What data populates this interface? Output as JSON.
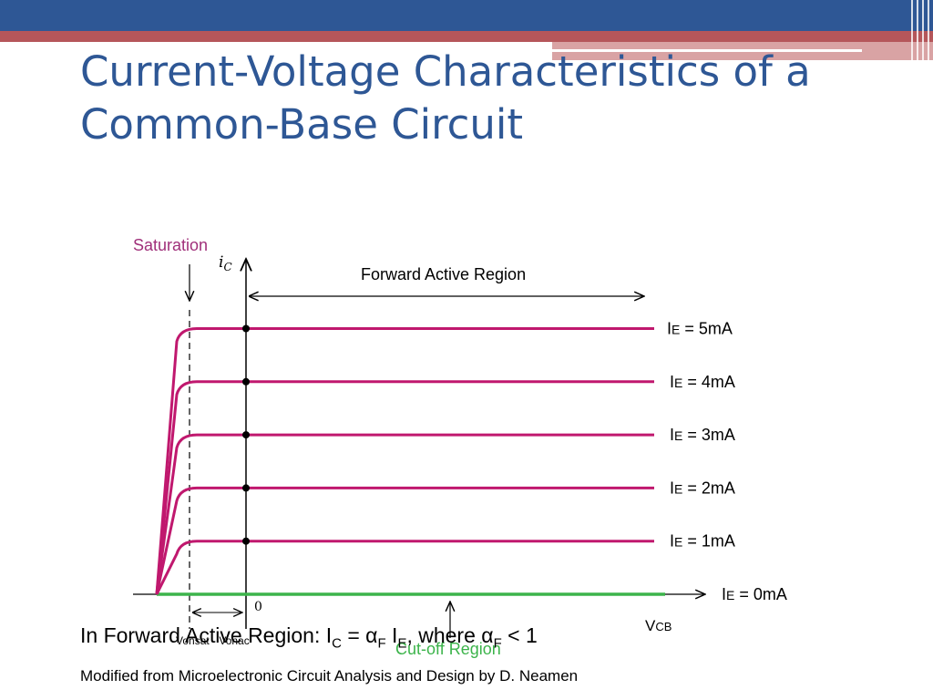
{
  "slide": {
    "title": "Current-Voltage Characteristics of a Common-Base Circuit",
    "credit": "Modified from Microelectronic Circuit Analysis and Design by D. Neamen"
  },
  "diagram": {
    "saturation_label": "Saturation",
    "forward_active_label": "Forward Active Region",
    "cutoff_label": "Cut-off Region",
    "y_axis_label": "i",
    "y_axis_sub": "C",
    "x_axis_label": "V",
    "x_axis_sub": "CB",
    "origin_label": "0",
    "vce_label": "Vonsat - Vonac",
    "curves": [
      {
        "label_I": "I",
        "label_E": "E",
        "label_val": "= 5mA",
        "ie_mA": 5
      },
      {
        "label_I": "I",
        "label_E": "E",
        "label_val": "= 4mA",
        "ie_mA": 4
      },
      {
        "label_I": "I",
        "label_E": "E",
        "label_val": "= 3mA",
        "ie_mA": 3
      },
      {
        "label_I": "I",
        "label_E": "E",
        "label_val": "= 2mA",
        "ie_mA": 2
      },
      {
        "label_I": "I",
        "label_E": "E",
        "label_val": "= 1mA",
        "ie_mA": 1
      },
      {
        "label_I": "I",
        "label_E": "E",
        "label_val": "= 0mA",
        "ie_mA": 0
      }
    ],
    "colors": {
      "curve": "#c0186e",
      "cutoff": "#3cb44b",
      "saturation_text": "#a0307a",
      "axis": "#000000"
    }
  },
  "formula": {
    "prefix": "In Forward Active Region:  I",
    "sub_c": "C",
    "eq": " = α",
    "sub_f": "F",
    "ie": " I",
    "sub_e": "E",
    "rest": ", where α",
    "sub_f2": "F",
    "tail": " < 1"
  }
}
